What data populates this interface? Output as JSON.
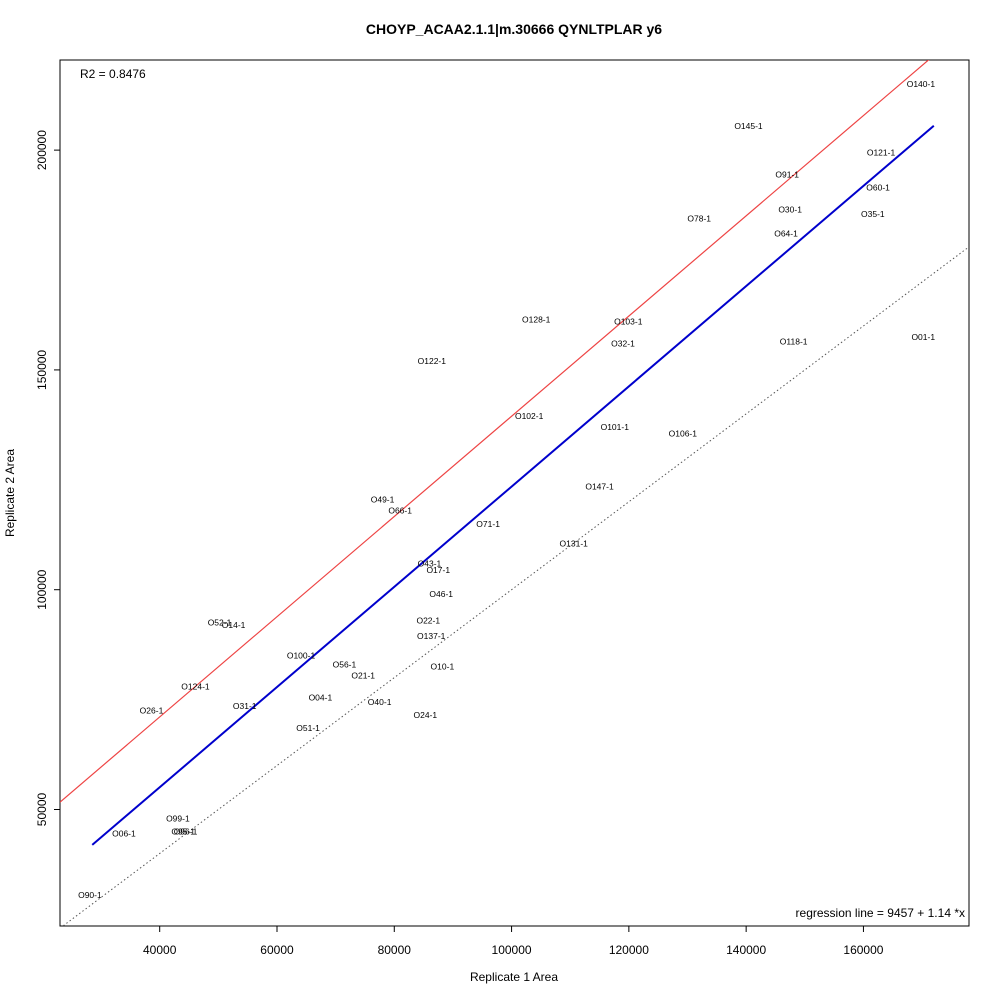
{
  "chart_data": {
    "type": "scatter",
    "title": "CHOYP_ACAA2.1.1|m.30666 QYNLTPLAR y6",
    "xlabel": "Replicate 1 Area",
    "ylabel": "Replicate 2 Area",
    "xlim": [
      23000,
      178000
    ],
    "ylim": [
      23500,
      220500
    ],
    "x_ticks": [
      40000,
      60000,
      80000,
      100000,
      120000,
      140000,
      160000
    ],
    "y_ticks": [
      50000,
      100000,
      150000,
      200000
    ],
    "r2_label": "R2 = 0.8476",
    "regression_label": "regression line = 9457 + 1.14 *x",
    "regression": {
      "intercept": 9457,
      "slope": 1.14,
      "x_range": [
        28500,
        172000
      ],
      "color": "#0000cc"
    },
    "red_line": {
      "intercept": 9457,
      "slope": 1.14,
      "x_range": [
        23000,
        178000
      ],
      "color": "#ee4444",
      "offset_y": 16000
    },
    "identity_line": {
      "x_range": [
        23000,
        178000
      ],
      "color": "#555555",
      "style": "dotted"
    },
    "points": [
      {
        "label": "O140-1",
        "x": 169800,
        "y": 215000
      },
      {
        "label": "O145-1",
        "x": 140400,
        "y": 205500
      },
      {
        "label": "O121-1",
        "x": 163000,
        "y": 199500
      },
      {
        "label": "O91-1",
        "x": 147000,
        "y": 194500
      },
      {
        "label": "O60-1",
        "x": 162500,
        "y": 191500
      },
      {
        "label": "O30-1",
        "x": 147500,
        "y": 186500
      },
      {
        "label": "O35-1",
        "x": 161600,
        "y": 185500
      },
      {
        "label": "O78-1",
        "x": 132000,
        "y": 184500
      },
      {
        "label": "O64-1",
        "x": 146800,
        "y": 181000
      },
      {
        "label": "O128-1",
        "x": 104200,
        "y": 161500
      },
      {
        "label": "O103-1",
        "x": 119900,
        "y": 161000
      },
      {
        "label": "O32-1",
        "x": 119000,
        "y": 156000
      },
      {
        "label": "O118-1",
        "x": 148100,
        "y": 156500
      },
      {
        "label": "O01-1",
        "x": 170200,
        "y": 157500
      },
      {
        "label": "O122-1",
        "x": 86400,
        "y": 152000
      },
      {
        "label": "O102-1",
        "x": 103000,
        "y": 139500
      },
      {
        "label": "O101-1",
        "x": 117600,
        "y": 137000
      },
      {
        "label": "O106-1",
        "x": 129200,
        "y": 135500
      },
      {
        "label": "O147-1",
        "x": 115000,
        "y": 123500
      },
      {
        "label": "O49-1",
        "x": 78000,
        "y": 120500
      },
      {
        "label": "O66-1",
        "x": 81000,
        "y": 118000
      },
      {
        "label": "O71-1",
        "x": 96000,
        "y": 115000
      },
      {
        "label": "O131-1",
        "x": 110600,
        "y": 110500
      },
      {
        "label": "O43-1",
        "x": 86000,
        "y": 106000
      },
      {
        "label": "O17-1",
        "x": 87500,
        "y": 104500
      },
      {
        "label": "O46-1",
        "x": 88000,
        "y": 99000
      },
      {
        "label": "O52-1",
        "x": 50200,
        "y": 92500
      },
      {
        "label": "O14-1",
        "x": 52600,
        "y": 92000
      },
      {
        "label": "O22-1",
        "x": 85800,
        "y": 93000
      },
      {
        "label": "O137-1",
        "x": 86300,
        "y": 89500
      },
      {
        "label": "O100-1",
        "x": 64100,
        "y": 85000
      },
      {
        "label": "O56-1",
        "x": 71500,
        "y": 83000
      },
      {
        "label": "O21-1",
        "x": 74700,
        "y": 80500
      },
      {
        "label": "O10-1",
        "x": 88200,
        "y": 82500
      },
      {
        "label": "O124-1",
        "x": 46100,
        "y": 78000
      },
      {
        "label": "O31-1",
        "x": 54500,
        "y": 73500
      },
      {
        "label": "O04-1",
        "x": 67400,
        "y": 75500
      },
      {
        "label": "O40-1",
        "x": 77500,
        "y": 74500
      },
      {
        "label": "O26-1",
        "x": 38600,
        "y": 72500
      },
      {
        "label": "O24-1",
        "x": 85300,
        "y": 71500
      },
      {
        "label": "O51-1",
        "x": 65300,
        "y": 68500
      },
      {
        "label": "O99-1",
        "x": 43100,
        "y": 48000
      },
      {
        "label": "O06-1",
        "x": 33900,
        "y": 44500
      },
      {
        "label": "O95-1",
        "x": 44000,
        "y": 45000
      },
      {
        "label": "O96-1",
        "x": 44400,
        "y": 45000
      },
      {
        "label": "O90-1",
        "x": 28100,
        "y": 30500
      }
    ]
  }
}
